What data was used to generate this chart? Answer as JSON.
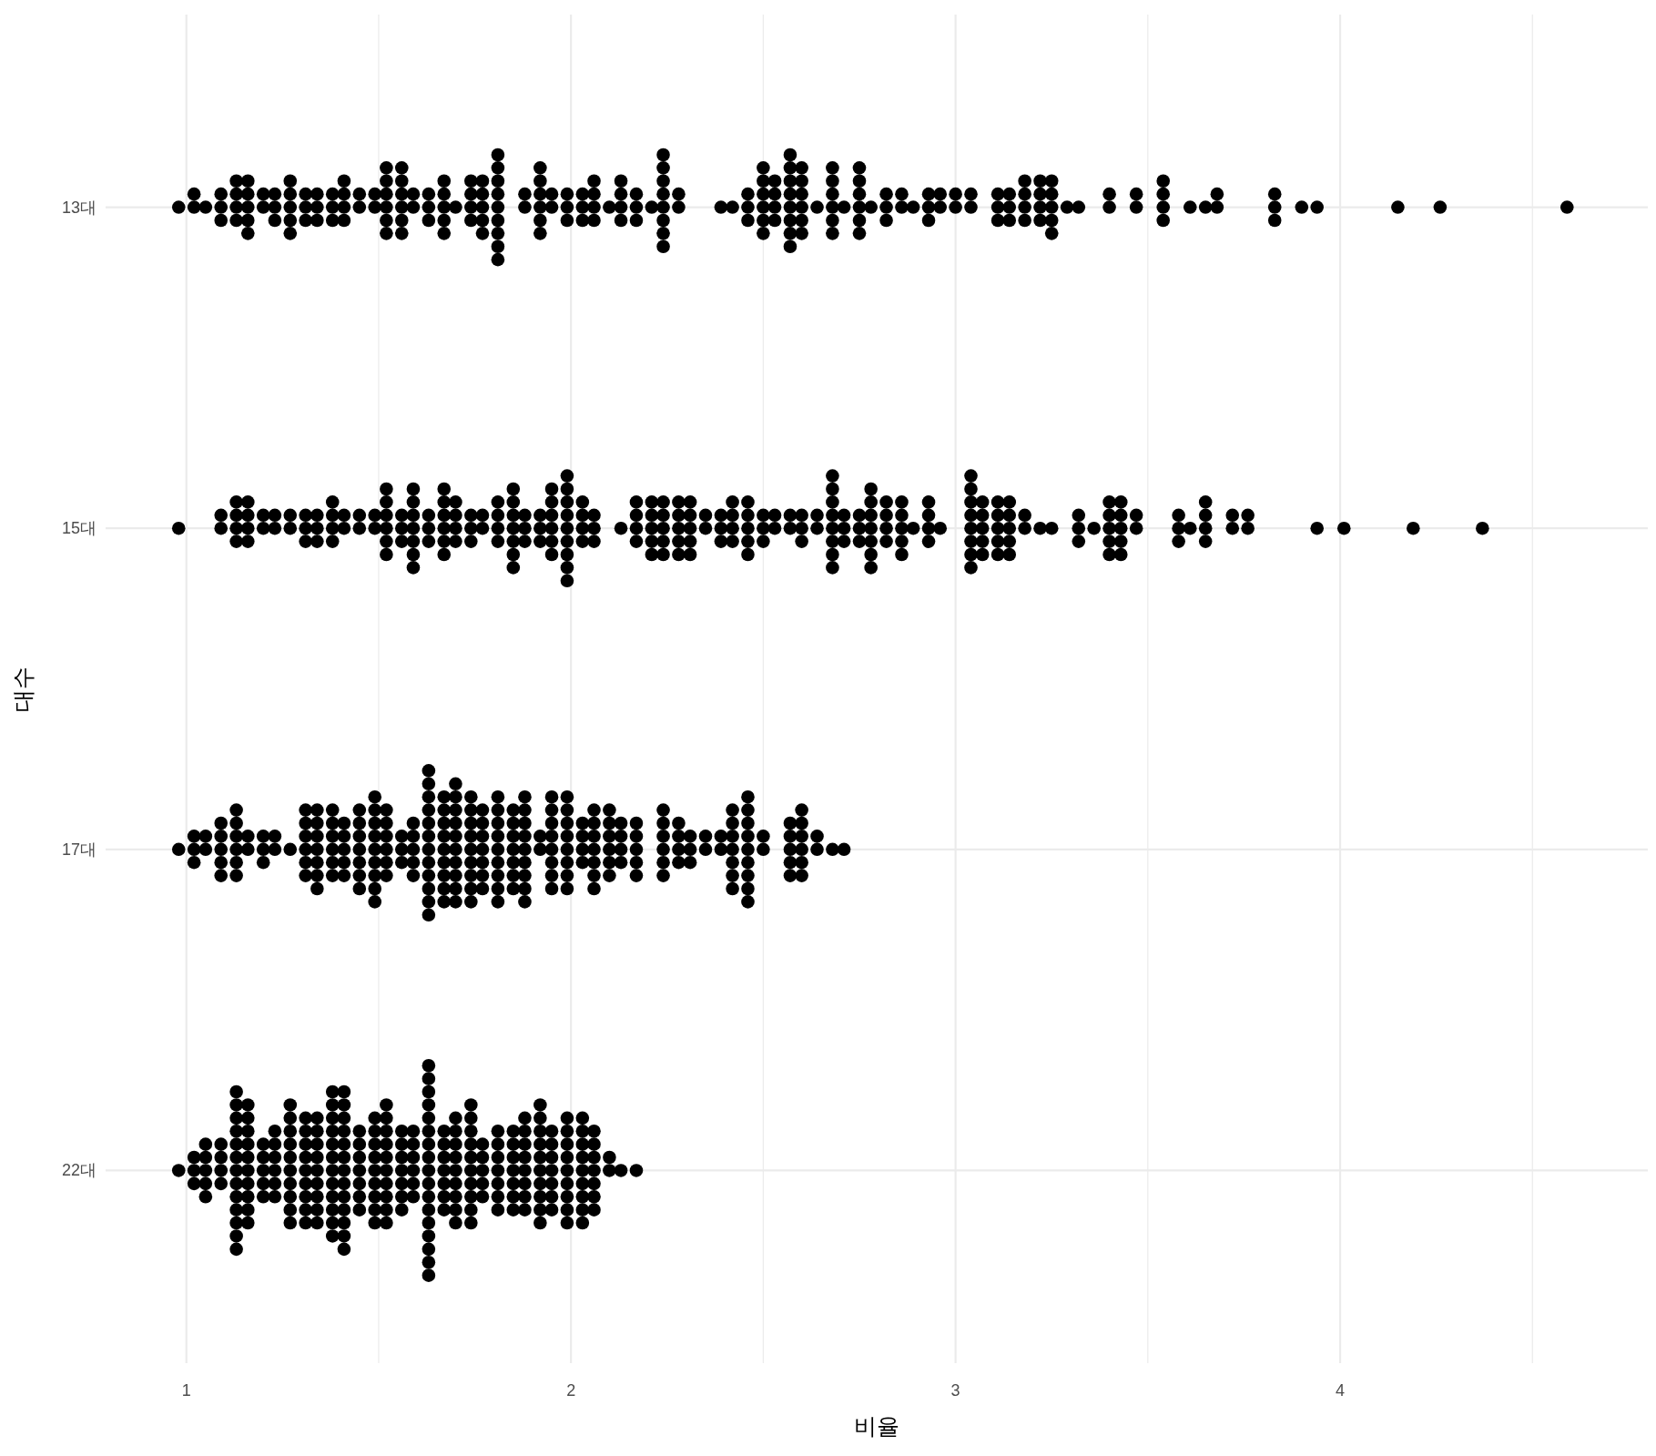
{
  "chart_data": {
    "type": "scatter",
    "orientation": "horizontal",
    "categories": [
      "13대",
      "15대",
      "17대",
      "22대"
    ],
    "xlabel": "비율",
    "ylabel": "대수",
    "xlim": [
      0.79,
      4.8
    ],
    "xticks": [
      1,
      {
        "value": 1.5,
        "label": null
      },
      2,
      {
        "value": 2.5,
        "label": null
      },
      3,
      {
        "value": 3.5,
        "label": null
      },
      4,
      {
        "value": 4.5,
        "label": null
      }
    ],
    "grid": true,
    "marker": "circle",
    "series": [
      {
        "color": "#000000",
        "x": [
          "13대",
          "13대",
          "13대",
          "13대",
          "13대",
          "13대",
          "13대",
          "13대",
          "13대",
          "13대",
          "13대",
          "13대",
          "13대",
          "13대",
          "13대",
          "13대",
          "13대",
          "13대",
          "13대",
          "13대",
          "13대",
          "13대",
          "13대",
          "13대",
          "13대",
          "13대",
          "13대",
          "13대",
          "13대",
          "13대",
          "13대",
          "13대",
          "13대",
          "13대",
          "13대",
          "13대",
          "13대",
          "13대",
          "13대",
          "13대",
          "13대",
          "13대",
          "13대",
          "13대",
          "13대",
          "13대",
          "13대",
          "13대",
          "13대",
          "13대",
          "13대",
          "13대",
          "13대",
          "13대",
          "13대",
          "13대",
          "13대",
          "13대",
          "13대",
          "13대",
          "13대",
          "13대",
          "13대",
          "13대",
          "13대",
          "13대",
          "13대",
          "13대",
          "13대",
          "13대",
          "13대",
          "13대",
          "13대",
          "13대",
          "13대",
          "13대",
          "13대",
          "13대",
          "13대",
          "13대",
          "13대",
          "13대",
          "13대",
          "13대",
          "13대",
          "13대",
          "13대",
          "13대",
          "13대",
          "13대",
          "13대",
          "13대",
          "13대",
          "13대",
          "13대",
          "13대",
          "13대",
          "13대",
          "13대",
          "13대",
          "13대",
          "13대",
          "13대",
          "13대",
          "13대",
          "13대",
          "13대",
          "13대",
          "13대",
          "13대",
          "13대",
          "13대",
          "13대",
          "13대",
          "13대",
          "13대",
          "13대",
          "13대",
          "13대",
          "13대",
          "13대",
          "13대",
          "13대",
          "13대",
          "13대",
          "13대",
          "13대",
          "13대",
          "13대",
          "13대",
          "13대",
          "13대",
          "13대",
          "13대",
          "13대",
          "13대",
          "13대",
          "13대",
          "13대",
          "13대",
          "13대",
          "13대",
          "13대",
          "13대",
          "13대",
          "13대",
          "13대",
          "13대",
          "13대",
          "13대",
          "13대",
          "13대",
          "13대",
          "13대",
          "13대",
          "13대",
          "13대",
          "13대",
          "13대",
          "13대",
          "13대",
          "13대",
          "13대",
          "13대",
          "13대",
          "13대",
          "13대",
          "13대",
          "13대",
          "13대",
          "13대",
          "13대",
          "13대",
          "13대",
          "13대",
          "13대",
          "13대",
          "13대",
          "13대",
          "13대",
          "13대",
          "13대",
          "13대",
          "13대",
          "13대",
          "13대",
          "13대",
          "13대",
          "13대",
          "13대",
          "13대",
          "13대",
          "13대",
          "13대",
          "13대",
          "13대",
          "13대",
          "13대",
          "13대",
          "13대",
          "13대",
          "13대",
          "13대",
          "13대",
          "13대",
          "13대",
          "13대",
          "13대",
          "13대",
          "13대",
          "13대",
          "13대",
          "13대",
          "13대",
          "13대",
          "13대",
          "13대",
          "13대",
          "13대",
          "13대",
          "13대",
          "13대",
          "13대"
        ],
        "values": [
          0.98,
          1.02,
          1.02,
          1.05,
          1.09,
          1.09,
          1.09,
          1.13,
          1.13,
          1.13,
          1.13,
          1.16,
          1.16,
          1.16,
          1.16,
          1.16,
          1.2,
          1.2,
          1.23,
          1.23,
          1.23,
          1.27,
          1.27,
          1.27,
          1.27,
          1.27,
          1.31,
          1.31,
          1.31,
          1.34,
          1.34,
          1.34,
          1.38,
          1.38,
          1.38,
          1.41,
          1.41,
          1.41,
          1.41,
          1.45,
          1.45,
          1.49,
          1.49,
          1.52,
          1.52,
          1.52,
          1.52,
          1.52,
          1.52,
          1.56,
          1.56,
          1.56,
          1.56,
          1.56,
          1.56,
          1.59,
          1.59,
          1.63,
          1.63,
          1.63,
          1.67,
          1.67,
          1.67,
          1.67,
          1.67,
          1.7,
          1.74,
          1.74,
          1.74,
          1.74,
          1.77,
          1.77,
          1.77,
          1.77,
          1.77,
          1.81,
          1.81,
          1.81,
          1.81,
          1.81,
          1.81,
          1.81,
          1.81,
          1.81,
          1.88,
          1.88,
          1.92,
          1.92,
          1.92,
          1.92,
          1.92,
          1.92,
          1.95,
          1.95,
          1.99,
          1.99,
          1.99,
          2.03,
          2.03,
          2.03,
          2.06,
          2.06,
          2.06,
          2.06,
          2.1,
          2.13,
          2.13,
          2.13,
          2.13,
          2.17,
          2.17,
          2.17,
          2.21,
          2.24,
          2.24,
          2.24,
          2.24,
          2.24,
          2.24,
          2.24,
          2.24,
          2.28,
          2.28,
          2.39,
          2.42,
          2.46,
          2.46,
          2.46,
          2.5,
          2.5,
          2.5,
          2.5,
          2.5,
          2.5,
          2.53,
          2.53,
          2.53,
          2.53,
          2.57,
          2.57,
          2.57,
          2.57,
          2.57,
          2.57,
          2.57,
          2.57,
          2.6,
          2.6,
          2.6,
          2.6,
          2.6,
          2.6,
          2.64,
          2.68,
          2.68,
          2.68,
          2.68,
          2.68,
          2.68,
          2.71,
          2.75,
          2.75,
          2.75,
          2.75,
          2.75,
          2.75,
          2.78,
          2.82,
          2.82,
          2.82,
          2.86,
          2.86,
          2.89,
          2.93,
          2.93,
          2.93,
          2.96,
          2.96,
          3.0,
          3.0,
          3.04,
          3.04,
          3.11,
          3.11,
          3.11,
          3.14,
          3.14,
          3.14,
          3.18,
          3.18,
          3.18,
          3.18,
          3.22,
          3.22,
          3.22,
          3.22,
          3.25,
          3.25,
          3.25,
          3.25,
          3.25,
          3.29,
          3.32,
          3.4,
          3.4,
          3.47,
          3.47,
          3.54,
          3.54,
          3.54,
          3.54,
          3.61,
          3.65,
          3.68,
          3.68,
          3.83,
          3.83,
          3.83,
          3.9,
          3.94,
          4.15,
          4.26,
          4.59
        ]
      },
      {
        "color": "#000000",
        "x": [
          "15대",
          "15대",
          "15대",
          "15대",
          "15대",
          "15대",
          "15대",
          "15대",
          "15대",
          "15대",
          "15대",
          "15대",
          "15대",
          "15대",
          "15대",
          "15대",
          "15대",
          "15대",
          "15대",
          "15대",
          "15대",
          "15대",
          "15대",
          "15대",
          "15대",
          "15대",
          "15대",
          "15대",
          "15대",
          "15대",
          "15대",
          "15대",
          "15대",
          "15대",
          "15대",
          "15대",
          "15대",
          "15대",
          "15대",
          "15대",
          "15대",
          "15대",
          "15대",
          "15대",
          "15대",
          "15대",
          "15대",
          "15대",
          "15대",
          "15대",
          "15대",
          "15대",
          "15대",
          "15대",
          "15대",
          "15대",
          "15대",
          "15대",
          "15대",
          "15대",
          "15대",
          "15대",
          "15대",
          "15대",
          "15대",
          "15대",
          "15대",
          "15대",
          "15대",
          "15대",
          "15대",
          "15대",
          "15대",
          "15대",
          "15대",
          "15대",
          "15대",
          "15대",
          "15대",
          "15대",
          "15대",
          "15대",
          "15대",
          "15대",
          "15대",
          "15대",
          "15대",
          "15대",
          "15대",
          "15대",
          "15대",
          "15대",
          "15대",
          "15대",
          "15대",
          "15대",
          "15대",
          "15대",
          "15대",
          "15대",
          "15대",
          "15대",
          "15대",
          "15대",
          "15대",
          "15대",
          "15대",
          "15대",
          "15대",
          "15대",
          "15대",
          "15대",
          "15대",
          "15대",
          "15대",
          "15대",
          "15대",
          "15대",
          "15대",
          "15대",
          "15대",
          "15대",
          "15대",
          "15대",
          "15대",
          "15대",
          "15대",
          "15대",
          "15대",
          "15대",
          "15대",
          "15대",
          "15대",
          "15대",
          "15대",
          "15대",
          "15대",
          "15대",
          "15대",
          "15대",
          "15대",
          "15대",
          "15대",
          "15대",
          "15대",
          "15대",
          "15대",
          "15대",
          "15대",
          "15대",
          "15대",
          "15대",
          "15대",
          "15대",
          "15대",
          "15대",
          "15대",
          "15대",
          "15대",
          "15대",
          "15대",
          "15대",
          "15대",
          "15대",
          "15대",
          "15대",
          "15대",
          "15대",
          "15대",
          "15대",
          "15대",
          "15대",
          "15대",
          "15대",
          "15대",
          "15대",
          "15대",
          "15대",
          "15대",
          "15대",
          "15대",
          "15대",
          "15대",
          "15대",
          "15대",
          "15대",
          "15대",
          "15대",
          "15대",
          "15대",
          "15대",
          "15대",
          "15대",
          "15대",
          "15대",
          "15대",
          "15대",
          "15대",
          "15대",
          "15대",
          "15대",
          "15대",
          "15대",
          "15대",
          "15대",
          "15대",
          "15대",
          "15대",
          "15대",
          "15대",
          "15대",
          "15대",
          "15대",
          "15대",
          "15대",
          "15대",
          "15대",
          "15대",
          "15대",
          "15대",
          "15대",
          "15대",
          "15대",
          "15대",
          "15대",
          "15대",
          "15대",
          "15대",
          "15대",
          "15대",
          "15대",
          "15대",
          "15대",
          "15대",
          "15대",
          "15대",
          "15대",
          "15대",
          "15대",
          "15대",
          "15대",
          "15대",
          "15대",
          "15대",
          "15대",
          "15대",
          "15대",
          "15대",
          "15대",
          "15대",
          "15대",
          "15대"
        ],
        "values": [
          0.98,
          1.09,
          1.09,
          1.13,
          1.13,
          1.13,
          1.13,
          1.16,
          1.16,
          1.16,
          1.16,
          1.2,
          1.2,
          1.23,
          1.23,
          1.27,
          1.27,
          1.31,
          1.31,
          1.31,
          1.34,
          1.34,
          1.34,
          1.38,
          1.38,
          1.38,
          1.38,
          1.41,
          1.41,
          1.45,
          1.45,
          1.49,
          1.49,
          1.52,
          1.52,
          1.52,
          1.52,
          1.52,
          1.52,
          1.56,
          1.56,
          1.56,
          1.59,
          1.59,
          1.59,
          1.59,
          1.59,
          1.59,
          1.59,
          1.63,
          1.63,
          1.63,
          1.67,
          1.67,
          1.67,
          1.67,
          1.67,
          1.67,
          1.7,
          1.7,
          1.7,
          1.7,
          1.74,
          1.74,
          1.74,
          1.77,
          1.77,
          1.81,
          1.81,
          1.81,
          1.81,
          1.85,
          1.85,
          1.85,
          1.85,
          1.85,
          1.85,
          1.85,
          1.88,
          1.88,
          1.88,
          1.92,
          1.92,
          1.92,
          1.95,
          1.95,
          1.95,
          1.95,
          1.95,
          1.95,
          1.99,
          1.99,
          1.99,
          1.99,
          1.99,
          1.99,
          1.99,
          1.99,
          1.99,
          2.03,
          2.03,
          2.03,
          2.03,
          2.06,
          2.06,
          2.06,
          2.13,
          2.17,
          2.17,
          2.17,
          2.17,
          2.21,
          2.21,
          2.21,
          2.21,
          2.21,
          2.24,
          2.24,
          2.24,
          2.24,
          2.24,
          2.28,
          2.28,
          2.28,
          2.28,
          2.28,
          2.31,
          2.31,
          2.31,
          2.31,
          2.31,
          2.35,
          2.35,
          2.39,
          2.39,
          2.39,
          2.42,
          2.42,
          2.42,
          2.42,
          2.46,
          2.46,
          2.46,
          2.46,
          2.46,
          2.5,
          2.5,
          2.5,
          2.53,
          2.53,
          2.57,
          2.57,
          2.6,
          2.6,
          2.6,
          2.64,
          2.64,
          2.68,
          2.68,
          2.68,
          2.68,
          2.68,
          2.68,
          2.68,
          2.68,
          2.71,
          2.71,
          2.71,
          2.75,
          2.75,
          2.75,
          2.78,
          2.78,
          2.78,
          2.78,
          2.78,
          2.78,
          2.78,
          2.82,
          2.82,
          2.82,
          2.82,
          2.86,
          2.86,
          2.86,
          2.86,
          2.86,
          2.89,
          2.93,
          2.93,
          2.93,
          2.93,
          2.96,
          3.04,
          3.04,
          3.04,
          3.04,
          3.04,
          3.04,
          3.04,
          3.04,
          3.07,
          3.07,
          3.07,
          3.07,
          3.07,
          3.11,
          3.11,
          3.11,
          3.11,
          3.11,
          3.14,
          3.14,
          3.14,
          3.14,
          3.14,
          3.18,
          3.18,
          3.22,
          3.25,
          3.32,
          3.32,
          3.32,
          3.36,
          3.4,
          3.4,
          3.4,
          3.4,
          3.4,
          3.43,
          3.43,
          3.43,
          3.43,
          3.43,
          3.47,
          3.47,
          3.58,
          3.58,
          3.58,
          3.61,
          3.65,
          3.65,
          3.65,
          3.65,
          3.72,
          3.72,
          3.76,
          3.76,
          3.94,
          4.01,
          4.19,
          4.37
        ]
      },
      {
        "color": "#000000",
        "x": [
          "17대",
          "17대",
          "17대",
          "17대",
          "17대",
          "17대",
          "17대",
          "17대",
          "17대",
          "17대",
          "17대",
          "17대",
          "17대",
          "17대",
          "17대",
          "17대",
          "17대",
          "17대",
          "17대",
          "17대",
          "17대",
          "17대",
          "17대",
          "17대",
          "17대",
          "17대",
          "17대",
          "17대",
          "17대",
          "17대",
          "17대",
          "17대",
          "17대",
          "17대",
          "17대",
          "17대",
          "17대",
          "17대",
          "17대",
          "17대",
          "17대",
          "17대",
          "17대",
          "17대",
          "17대",
          "17대",
          "17대",
          "17대",
          "17대",
          "17대",
          "17대",
          "17대",
          "17대",
          "17대",
          "17대",
          "17대",
          "17대",
          "17대",
          "17대",
          "17대",
          "17대",
          "17대",
          "17대",
          "17대",
          "17대",
          "17대",
          "17대",
          "17대",
          "17대",
          "17대",
          "17대",
          "17대",
          "17대",
          "17대",
          "17대",
          "17대",
          "17대",
          "17대",
          "17대",
          "17대",
          "17대",
          "17대",
          "17대",
          "17대",
          "17대",
          "17대",
          "17대",
          "17대",
          "17대",
          "17대",
          "17대",
          "17대",
          "17대",
          "17대",
          "17대",
          "17대",
          "17대",
          "17대",
          "17대",
          "17대",
          "17대",
          "17대",
          "17대",
          "17대",
          "17대",
          "17대",
          "17대",
          "17대",
          "17대",
          "17대",
          "17대",
          "17대",
          "17대",
          "17대",
          "17대",
          "17대",
          "17대",
          "17대",
          "17대",
          "17대",
          "17대",
          "17대",
          "17대",
          "17대",
          "17대",
          "17대",
          "17대",
          "17대",
          "17대",
          "17대",
          "17대",
          "17대",
          "17대",
          "17대",
          "17대",
          "17대",
          "17대",
          "17대",
          "17대",
          "17대",
          "17대",
          "17대",
          "17대",
          "17대",
          "17대",
          "17대",
          "17대",
          "17대",
          "17대",
          "17대",
          "17대",
          "17대",
          "17대",
          "17대",
          "17대",
          "17대",
          "17대",
          "17대",
          "17대",
          "17대",
          "17대",
          "17대",
          "17대",
          "17대",
          "17대",
          "17대",
          "17대",
          "17대",
          "17대",
          "17대",
          "17대",
          "17대",
          "17대",
          "17대",
          "17대",
          "17대",
          "17대",
          "17대",
          "17대",
          "17대",
          "17대",
          "17대",
          "17대",
          "17대",
          "17대",
          "17대",
          "17대",
          "17대",
          "17대",
          "17대",
          "17대",
          "17대",
          "17대",
          "17대",
          "17대",
          "17대",
          "17대",
          "17대",
          "17대",
          "17대",
          "17대",
          "17대",
          "17대",
          "17대",
          "17대",
          "17대",
          "17대",
          "17대",
          "17대",
          "17대",
          "17대",
          "17대",
          "17대",
          "17대",
          "17대",
          "17대",
          "17대",
          "17대",
          "17대",
          "17대",
          "17대",
          "17대",
          "17대",
          "17대",
          "17대",
          "17대",
          "17대",
          "17대",
          "17대",
          "17대",
          "17대",
          "17대",
          "17대",
          "17대",
          "17대",
          "17대",
          "17대",
          "17대",
          "17대",
          "17대",
          "17대",
          "17대",
          "17대",
          "17대",
          "17대"
        ],
        "values": [
          0.98,
          1.02,
          1.02,
          1.02,
          1.05,
          1.05,
          1.09,
          1.09,
          1.09,
          1.09,
          1.09,
          1.13,
          1.13,
          1.13,
          1.13,
          1.13,
          1.13,
          1.16,
          1.16,
          1.2,
          1.2,
          1.2,
          1.23,
          1.23,
          1.27,
          1.31,
          1.31,
          1.31,
          1.31,
          1.31,
          1.31,
          1.34,
          1.34,
          1.34,
          1.34,
          1.34,
          1.34,
          1.34,
          1.38,
          1.38,
          1.38,
          1.38,
          1.38,
          1.38,
          1.41,
          1.41,
          1.41,
          1.41,
          1.41,
          1.45,
          1.45,
          1.45,
          1.45,
          1.45,
          1.45,
          1.45,
          1.49,
          1.49,
          1.49,
          1.49,
          1.49,
          1.49,
          1.49,
          1.49,
          1.49,
          1.52,
          1.52,
          1.52,
          1.52,
          1.52,
          1.52,
          1.56,
          1.56,
          1.56,
          1.59,
          1.59,
          1.59,
          1.59,
          1.59,
          1.63,
          1.63,
          1.63,
          1.63,
          1.63,
          1.63,
          1.63,
          1.63,
          1.63,
          1.63,
          1.63,
          1.63,
          1.67,
          1.67,
          1.67,
          1.67,
          1.67,
          1.67,
          1.67,
          1.67,
          1.67,
          1.7,
          1.7,
          1.7,
          1.7,
          1.7,
          1.7,
          1.7,
          1.7,
          1.7,
          1.7,
          1.74,
          1.74,
          1.74,
          1.74,
          1.74,
          1.74,
          1.74,
          1.74,
          1.74,
          1.77,
          1.77,
          1.77,
          1.77,
          1.77,
          1.77,
          1.77,
          1.81,
          1.81,
          1.81,
          1.81,
          1.81,
          1.81,
          1.81,
          1.81,
          1.81,
          1.85,
          1.85,
          1.85,
          1.85,
          1.85,
          1.85,
          1.85,
          1.88,
          1.88,
          1.88,
          1.88,
          1.88,
          1.88,
          1.88,
          1.88,
          1.88,
          1.92,
          1.92,
          1.95,
          1.95,
          1.95,
          1.95,
          1.95,
          1.95,
          1.95,
          1.95,
          1.99,
          1.99,
          1.99,
          1.99,
          1.99,
          1.99,
          1.99,
          1.99,
          2.03,
          2.03,
          2.03,
          2.03,
          2.06,
          2.06,
          2.06,
          2.06,
          2.06,
          2.06,
          2.06,
          2.1,
          2.1,
          2.1,
          2.1,
          2.1,
          2.1,
          2.13,
          2.13,
          2.13,
          2.13,
          2.17,
          2.17,
          2.17,
          2.17,
          2.17,
          2.24,
          2.24,
          2.24,
          2.24,
          2.24,
          2.24,
          2.28,
          2.28,
          2.28,
          2.28,
          2.31,
          2.31,
          2.31,
          2.35,
          2.35,
          2.39,
          2.39,
          2.42,
          2.42,
          2.42,
          2.42,
          2.42,
          2.42,
          2.42,
          2.46,
          2.46,
          2.46,
          2.46,
          2.46,
          2.46,
          2.46,
          2.46,
          2.46,
          2.5,
          2.5,
          2.57,
          2.57,
          2.57,
          2.57,
          2.57,
          2.6,
          2.6,
          2.6,
          2.6,
          2.6,
          2.6,
          2.64,
          2.64,
          2.68,
          2.71
        ]
      },
      {
        "color": "#000000",
        "x": [
          "22대",
          "22대",
          "22대",
          "22대",
          "22대",
          "22대",
          "22대",
          "22대",
          "22대",
          "22대",
          "22대",
          "22대",
          "22대",
          "22대",
          "22대",
          "22대",
          "22대",
          "22대",
          "22대",
          "22대",
          "22대",
          "22대",
          "22대",
          "22대",
          "22대",
          "22대",
          "22대",
          "22대",
          "22대",
          "22대",
          "22대",
          "22대",
          "22대",
          "22대",
          "22대",
          "22대",
          "22대",
          "22대",
          "22대",
          "22대",
          "22대",
          "22대",
          "22대",
          "22대",
          "22대",
          "22대",
          "22대",
          "22대",
          "22대",
          "22대",
          "22대",
          "22대",
          "22대",
          "22대",
          "22대",
          "22대",
          "22대",
          "22대",
          "22대",
          "22대",
          "22대",
          "22대",
          "22대",
          "22대",
          "22대",
          "22대",
          "22대",
          "22대",
          "22대",
          "22대",
          "22대",
          "22대",
          "22대",
          "22대",
          "22대",
          "22대",
          "22대",
          "22대",
          "22대",
          "22대",
          "22대",
          "22대",
          "22대",
          "22대",
          "22대",
          "22대",
          "22대",
          "22대",
          "22대",
          "22대",
          "22대",
          "22대",
          "22대",
          "22대",
          "22대",
          "22대",
          "22대",
          "22대",
          "22대",
          "22대",
          "22대",
          "22대",
          "22대",
          "22대",
          "22대",
          "22대",
          "22대",
          "22대",
          "22대",
          "22대",
          "22대",
          "22대",
          "22대",
          "22대",
          "22대",
          "22대",
          "22대",
          "22대",
          "22대",
          "22대",
          "22대",
          "22대",
          "22대",
          "22대",
          "22대",
          "22대",
          "22대",
          "22대",
          "22대",
          "22대",
          "22대",
          "22대",
          "22대",
          "22대",
          "22대",
          "22대",
          "22대",
          "22대",
          "22대",
          "22대",
          "22대",
          "22대",
          "22대",
          "22대",
          "22대",
          "22대",
          "22대",
          "22대",
          "22대",
          "22대",
          "22대",
          "22대",
          "22대",
          "22대",
          "22대",
          "22대",
          "22대",
          "22대",
          "22대",
          "22대",
          "22대",
          "22대",
          "22대",
          "22대",
          "22대",
          "22대",
          "22대",
          "22대",
          "22대",
          "22대",
          "22대",
          "22대",
          "22대",
          "22대",
          "22대",
          "22대",
          "22대",
          "22대",
          "22대",
          "22대",
          "22대",
          "22대",
          "22대",
          "22대",
          "22대",
          "22대",
          "22대",
          "22대",
          "22대",
          "22대",
          "22대",
          "22대",
          "22대",
          "22대",
          "22대",
          "22대",
          "22대",
          "22대",
          "22대",
          "22대",
          "22대",
          "22대",
          "22대",
          "22대",
          "22대",
          "22대",
          "22대",
          "22대",
          "22대",
          "22대",
          "22대",
          "22대",
          "22대",
          "22대",
          "22대",
          "22대",
          "22대",
          "22대",
          "22대",
          "22대",
          "22대",
          "22대",
          "22대",
          "22대",
          "22대",
          "22대",
          "22대",
          "22대",
          "22대",
          "22대",
          "22대",
          "22대",
          "22대",
          "22대",
          "22대",
          "22대",
          "22대",
          "22대",
          "22대",
          "22대",
          "22대",
          "22대",
          "22대",
          "22대",
          "22대",
          "22대",
          "22대",
          "22대",
          "22대",
          "22대",
          "22대",
          "22대",
          "22대",
          "22대",
          "22대"
        ],
        "values": [
          0.98,
          1.02,
          1.02,
          1.02,
          1.05,
          1.05,
          1.05,
          1.05,
          1.05,
          1.09,
          1.09,
          1.09,
          1.09,
          1.13,
          1.13,
          1.13,
          1.13,
          1.13,
          1.13,
          1.13,
          1.13,
          1.13,
          1.13,
          1.13,
          1.13,
          1.13,
          1.16,
          1.16,
          1.16,
          1.16,
          1.16,
          1.16,
          1.16,
          1.16,
          1.16,
          1.16,
          1.2,
          1.2,
          1.2,
          1.2,
          1.2,
          1.23,
          1.23,
          1.23,
          1.23,
          1.23,
          1.23,
          1.27,
          1.27,
          1.27,
          1.27,
          1.27,
          1.27,
          1.27,
          1.27,
          1.27,
          1.27,
          1.31,
          1.31,
          1.31,
          1.31,
          1.31,
          1.31,
          1.31,
          1.31,
          1.31,
          1.34,
          1.34,
          1.34,
          1.34,
          1.34,
          1.34,
          1.34,
          1.34,
          1.34,
          1.38,
          1.38,
          1.38,
          1.38,
          1.38,
          1.38,
          1.38,
          1.38,
          1.38,
          1.38,
          1.38,
          1.38,
          1.41,
          1.41,
          1.41,
          1.41,
          1.41,
          1.41,
          1.41,
          1.41,
          1.41,
          1.41,
          1.41,
          1.41,
          1.41,
          1.45,
          1.45,
          1.45,
          1.45,
          1.45,
          1.45,
          1.45,
          1.49,
          1.49,
          1.49,
          1.49,
          1.49,
          1.49,
          1.49,
          1.49,
          1.49,
          1.52,
          1.52,
          1.52,
          1.52,
          1.52,
          1.52,
          1.52,
          1.52,
          1.52,
          1.52,
          1.56,
          1.56,
          1.56,
          1.56,
          1.56,
          1.56,
          1.56,
          1.59,
          1.59,
          1.59,
          1.59,
          1.59,
          1.59,
          1.63,
          1.63,
          1.63,
          1.63,
          1.63,
          1.63,
          1.63,
          1.63,
          1.63,
          1.63,
          1.63,
          1.63,
          1.63,
          1.63,
          1.63,
          1.63,
          1.63,
          1.67,
          1.67,
          1.67,
          1.67,
          1.67,
          1.67,
          1.67,
          1.7,
          1.7,
          1.7,
          1.7,
          1.7,
          1.7,
          1.7,
          1.7,
          1.7,
          1.74,
          1.74,
          1.74,
          1.74,
          1.74,
          1.74,
          1.74,
          1.74,
          1.74,
          1.74,
          1.77,
          1.77,
          1.77,
          1.77,
          1.77,
          1.81,
          1.81,
          1.81,
          1.81,
          1.81,
          1.81,
          1.81,
          1.85,
          1.85,
          1.85,
          1.85,
          1.85,
          1.85,
          1.85,
          1.88,
          1.88,
          1.88,
          1.88,
          1.88,
          1.88,
          1.88,
          1.88,
          1.92,
          1.92,
          1.92,
          1.92,
          1.92,
          1.92,
          1.92,
          1.92,
          1.92,
          1.92,
          1.95,
          1.95,
          1.95,
          1.95,
          1.95,
          1.95,
          1.95,
          1.99,
          1.99,
          1.99,
          1.99,
          1.99,
          1.99,
          1.99,
          1.99,
          1.99,
          2.03,
          2.03,
          2.03,
          2.03,
          2.03,
          2.03,
          2.03,
          2.03,
          2.03,
          2.06,
          2.06,
          2.06,
          2.06,
          2.06,
          2.06,
          2.06,
          2.1,
          2.1,
          2.13,
          2.17
        ]
      }
    ]
  }
}
